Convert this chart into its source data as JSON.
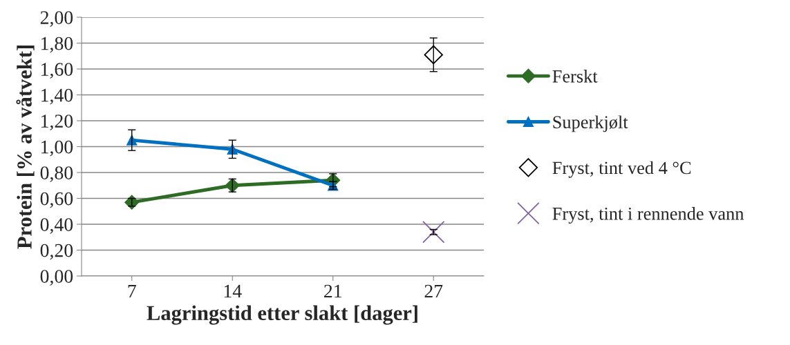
{
  "chart_data": {
    "type": "line",
    "ylabel": "Protein [% av våtvekt]",
    "xlabel": "Lagringstid etter slakt [dager]",
    "categories": [
      "7",
      "14",
      "21",
      "27"
    ],
    "series": [
      {
        "name": "Ferskt",
        "color": "#2e6b24",
        "marker": "diamond",
        "values": [
          0.57,
          0.7,
          0.74,
          null
        ],
        "errors": [
          0.03,
          0.05,
          0.05,
          null
        ]
      },
      {
        "name": "Superkjølt",
        "color": "#0070c0",
        "marker": "triangle",
        "values": [
          1.05,
          0.98,
          0.7,
          null
        ],
        "errors": [
          0.08,
          0.07,
          0.03,
          null
        ]
      },
      {
        "name": "Fryst, tint ved 4 °C",
        "type": "scatter",
        "color": "#000000",
        "marker": "diamond",
        "values": [
          null,
          null,
          null,
          1.71
        ],
        "errors": [
          null,
          null,
          null,
          0.13
        ]
      },
      {
        "name": "Fryst, tint i rennende vann",
        "type": "scatter",
        "color": "#7f62a0",
        "marker": "cross",
        "values": [
          null,
          null,
          null,
          0.34
        ],
        "errors": [
          null,
          null,
          null,
          0.02
        ]
      }
    ],
    "ylim": [
      0,
      2
    ],
    "yticks": [
      {
        "value": 0,
        "label": "0,00"
      },
      {
        "value": 0.2,
        "label": "0,20"
      },
      {
        "value": 0.4,
        "label": "0,40"
      },
      {
        "value": 0.6,
        "label": "0,60"
      },
      {
        "value": 0.8,
        "label": "0,80"
      },
      {
        "value": 1.0,
        "label": "1,00"
      },
      {
        "value": 1.2,
        "label": "1,20"
      },
      {
        "value": 1.4,
        "label": "1,40"
      },
      {
        "value": 1.6,
        "label": "1,60"
      },
      {
        "value": 1.8,
        "label": "1,80"
      },
      {
        "value": 2.0,
        "label": "2,00"
      }
    ],
    "grid": "y",
    "legend": "right"
  }
}
